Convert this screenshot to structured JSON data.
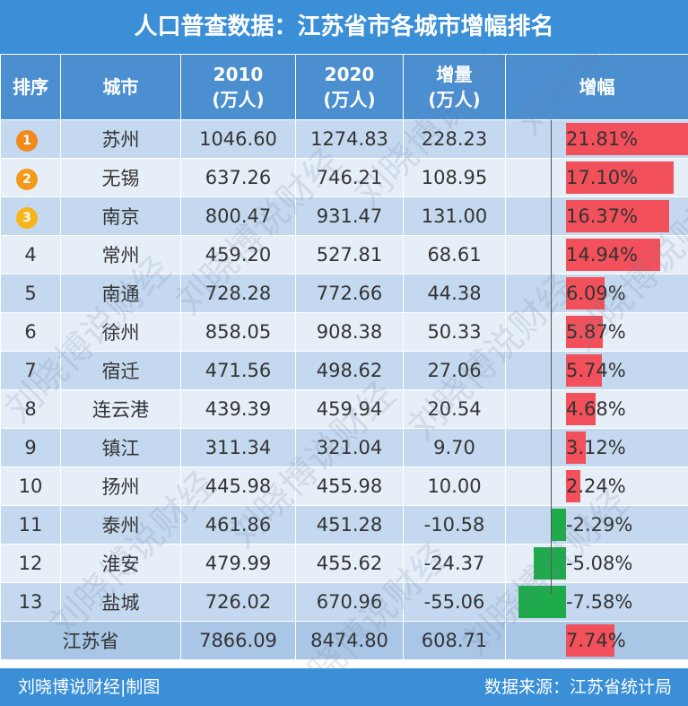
{
  "title": "人口普查数据：江苏省市各城市增幅排名",
  "headers": {
    "rank": "排序",
    "city": "城市",
    "y2010": [
      "2010",
      "(万人)"
    ],
    "y2020": [
      "2020",
      "(万人)"
    ],
    "delta": [
      "增量",
      "(万人)"
    ],
    "pct": "增幅"
  },
  "badge_colors": [
    "#f08a1c",
    "#f39a1a",
    "#f7b51a"
  ],
  "bar_colors": {
    "positive": "#f2505a",
    "negative": "#1faa4b"
  },
  "rows": [
    {
      "rank": "1",
      "city": "苏州",
      "y2010": "1046.60",
      "y2020": "1274.83",
      "delta": "228.23",
      "pct_label": "21.81%",
      "pct": 21.81
    },
    {
      "rank": "2",
      "city": "无锡",
      "y2010": "637.26",
      "y2020": "746.21",
      "delta": "108.95",
      "pct_label": "17.10%",
      "pct": 17.1
    },
    {
      "rank": "3",
      "city": "南京",
      "y2010": "800.47",
      "y2020": "931.47",
      "delta": "131.00",
      "pct_label": "16.37%",
      "pct": 16.37
    },
    {
      "rank": "4",
      "city": "常州",
      "y2010": "459.20",
      "y2020": "527.81",
      "delta": "68.61",
      "pct_label": "14.94%",
      "pct": 14.94
    },
    {
      "rank": "5",
      "city": "南通",
      "y2010": "728.28",
      "y2020": "772.66",
      "delta": "44.38",
      "pct_label": "6.09%",
      "pct": 6.09
    },
    {
      "rank": "6",
      "city": "徐州",
      "y2010": "858.05",
      "y2020": "908.38",
      "delta": "50.33",
      "pct_label": "5.87%",
      "pct": 5.87
    },
    {
      "rank": "7",
      "city": "宿迁",
      "y2010": "471.56",
      "y2020": "498.62",
      "delta": "27.06",
      "pct_label": "5.74%",
      "pct": 5.74
    },
    {
      "rank": "8",
      "city": "连云港",
      "y2010": "439.39",
      "y2020": "459.94",
      "delta": "20.54",
      "pct_label": "4.68%",
      "pct": 4.68
    },
    {
      "rank": "9",
      "city": "镇江",
      "y2010": "311.34",
      "y2020": "321.04",
      "delta": "9.70",
      "pct_label": "3.12%",
      "pct": 3.12
    },
    {
      "rank": "10",
      "city": "扬州",
      "y2010": "445.98",
      "y2020": "455.98",
      "delta": "10.00",
      "pct_label": "2.24%",
      "pct": 2.24
    },
    {
      "rank": "11",
      "city": "泰州",
      "y2010": "461.86",
      "y2020": "451.28",
      "delta": "-10.58",
      "pct_label": "-2.29%",
      "pct": -2.29
    },
    {
      "rank": "12",
      "city": "淮安",
      "y2010": "479.99",
      "y2020": "455.62",
      "delta": "-24.37",
      "pct_label": "-5.08%",
      "pct": -5.08
    },
    {
      "rank": "13",
      "city": "盐城",
      "y2010": "726.02",
      "y2020": "670.96",
      "delta": "-55.06",
      "pct_label": "-7.58%",
      "pct": -7.58
    }
  ],
  "total": {
    "city": "江苏省",
    "y2010": "7866.09",
    "y2020": "8474.80",
    "delta": "608.71",
    "pct_label": "7.74%",
    "pct": 7.74
  },
  "footer": {
    "left": "刘晓博说财经|制图",
    "right": "数据来源：江苏省统计局"
  },
  "watermark": "刘晓博说财经",
  "chart_data": {
    "type": "bar",
    "categories": [
      "苏州",
      "无锡",
      "南京",
      "常州",
      "南通",
      "徐州",
      "宿迁",
      "连云港",
      "镇江",
      "扬州",
      "泰州",
      "淮安",
      "盐城",
      "江苏省"
    ],
    "series": [
      {
        "values": [
          21.81,
          17.1,
          16.37,
          14.94,
          6.09,
          5.87,
          5.74,
          4.68,
          3.12,
          2.24,
          -2.29,
          -5.08,
          -7.58,
          7.74
        ]
      }
    ],
    "title": "人口普查数据：江苏省市各城市增幅排名",
    "xlabel": "",
    "ylabel": "增幅"
  }
}
